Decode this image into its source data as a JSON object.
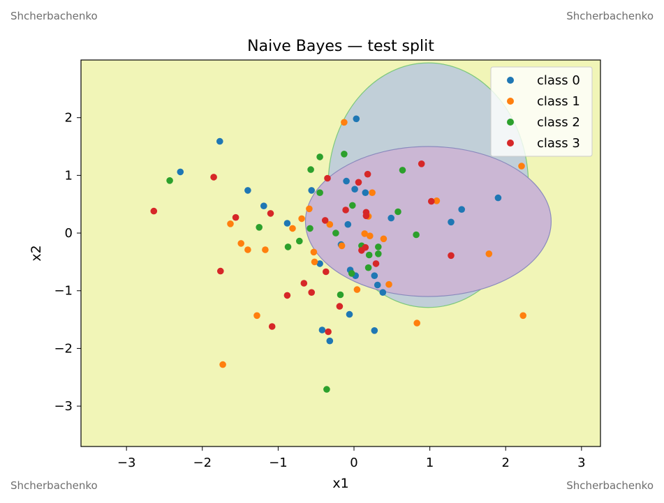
{
  "watermarks": {
    "top_left": "Shcherbachenko",
    "top_right": "Shcherbachenko",
    "bottom_left": "Shcherbachenko",
    "bottom_right": "Shcherbachenko"
  },
  "chart_data": {
    "type": "scatter",
    "title": "Naive Bayes — test split",
    "xlabel": "x1",
    "ylabel": "x2",
    "xlim": [
      -3.6,
      3.25
    ],
    "ylim": [
      -3.7,
      3.0
    ],
    "x_ticks": [
      -3,
      -2,
      -1,
      0,
      1,
      2,
      3
    ],
    "x_tick_labels": [
      "−3",
      "−2",
      "−1",
      "0",
      "1",
      "2",
      "3"
    ],
    "y_ticks": [
      -3,
      -2,
      -1,
      0,
      1,
      2
    ],
    "y_tick_labels": [
      "−3",
      "−2",
      "−1",
      "0",
      "1",
      "2"
    ],
    "grid": false,
    "legend_position": "top-right",
    "background_region_color": "#f1f5b7",
    "decision_regions": [
      {
        "shape": "ellipse",
        "cx": 0.98,
        "cy": 0.83,
        "rx": 1.32,
        "ry": 2.12,
        "fill": "#c1cfd8",
        "edge": "#7dc87d"
      },
      {
        "shape": "ellipse",
        "cx": 0.98,
        "cy": 0.2,
        "rx": 1.62,
        "ry": 1.3,
        "fill": "#cbb7d4",
        "edge": "#8a8abd"
      }
    ],
    "series": [
      {
        "name": "class 0",
        "color": "#1f77b4",
        "points": [
          [
            0.03,
            1.98
          ],
          [
            -1.77,
            1.59
          ],
          [
            -2.29,
            1.06
          ],
          [
            -1.4,
            0.74
          ],
          [
            -1.19,
            0.47
          ],
          [
            -0.56,
            0.74
          ],
          [
            -0.1,
            0.9
          ],
          [
            0.01,
            0.76
          ],
          [
            0.15,
            0.7
          ],
          [
            -0.88,
            0.17
          ],
          [
            -0.08,
            0.15
          ],
          [
            -0.45,
            -0.53
          ],
          [
            -0.17,
            -0.2
          ],
          [
            -0.05,
            -0.64
          ],
          [
            0.02,
            -0.74
          ],
          [
            0.27,
            -0.74
          ],
          [
            0.31,
            -0.9
          ],
          [
            0.38,
            -1.03
          ],
          [
            -0.06,
            -1.41
          ],
          [
            -0.42,
            -1.68
          ],
          [
            -0.32,
            -1.87
          ],
          [
            0.27,
            -1.69
          ],
          [
            0.49,
            0.26
          ],
          [
            1.28,
            0.19
          ],
          [
            1.42,
            0.41
          ],
          [
            1.9,
            0.61
          ]
        ]
      },
      {
        "name": "class 1",
        "color": "#ff7f0e",
        "points": [
          [
            -0.13,
            1.92
          ],
          [
            2.21,
            1.16
          ],
          [
            0.24,
            0.7
          ],
          [
            1.09,
            0.56
          ],
          [
            -0.59,
            0.42
          ],
          [
            -0.69,
            0.25
          ],
          [
            -0.81,
            0.08
          ],
          [
            -0.32,
            0.15
          ],
          [
            0.19,
            0.29
          ],
          [
            -1.63,
            0.16
          ],
          [
            0.14,
            -0.01
          ],
          [
            0.21,
            -0.05
          ],
          [
            0.39,
            -0.1
          ],
          [
            -1.49,
            -0.18
          ],
          [
            -1.4,
            -0.29
          ],
          [
            -1.17,
            -0.29
          ],
          [
            -0.16,
            -0.22
          ],
          [
            -0.53,
            -0.33
          ],
          [
            -0.52,
            -0.5
          ],
          [
            0.46,
            -0.89
          ],
          [
            0.04,
            -0.98
          ],
          [
            1.78,
            -0.36
          ],
          [
            -1.28,
            -1.43
          ],
          [
            0.83,
            -1.56
          ],
          [
            2.23,
            -1.43
          ],
          [
            -1.73,
            -2.28
          ]
        ]
      },
      {
        "name": "class 2",
        "color": "#2ca02c",
        "points": [
          [
            -0.45,
            1.32
          ],
          [
            -0.13,
            1.37
          ],
          [
            0.64,
            1.09
          ],
          [
            -2.43,
            0.91
          ],
          [
            -0.57,
            1.1
          ],
          [
            -0.45,
            0.7
          ],
          [
            -0.02,
            0.48
          ],
          [
            0.58,
            0.37
          ],
          [
            -1.25,
            0.1
          ],
          [
            -0.58,
            0.08
          ],
          [
            -0.24,
            0.0
          ],
          [
            0.82,
            -0.03
          ],
          [
            -0.72,
            -0.14
          ],
          [
            -0.87,
            -0.24
          ],
          [
            0.1,
            -0.22
          ],
          [
            0.32,
            -0.24
          ],
          [
            0.2,
            -0.38
          ],
          [
            0.32,
            -0.36
          ],
          [
            0.19,
            -0.6
          ],
          [
            -0.03,
            -0.7
          ],
          [
            -0.18,
            -1.07
          ],
          [
            -0.36,
            -2.71
          ]
        ]
      },
      {
        "name": "class 3",
        "color": "#d62728",
        "points": [
          [
            0.89,
            1.2
          ],
          [
            -1.85,
            0.97
          ],
          [
            -0.35,
            0.95
          ],
          [
            0.18,
            1.02
          ],
          [
            0.06,
            0.88
          ],
          [
            -2.64,
            0.38
          ],
          [
            -1.56,
            0.27
          ],
          [
            -1.1,
            0.34
          ],
          [
            -0.38,
            0.22
          ],
          [
            -0.11,
            0.4
          ],
          [
            0.16,
            0.36
          ],
          [
            0.16,
            0.3
          ],
          [
            1.02,
            0.55
          ],
          [
            0.1,
            -0.3
          ],
          [
            0.15,
            -0.25
          ],
          [
            0.29,
            -0.53
          ],
          [
            -1.76,
            -0.66
          ],
          [
            -0.37,
            -0.67
          ],
          [
            -0.66,
            -0.87
          ],
          [
            -0.56,
            -1.03
          ],
          [
            -0.88,
            -1.08
          ],
          [
            -0.19,
            -1.27
          ],
          [
            -1.08,
            -1.62
          ],
          [
            -0.34,
            -1.71
          ],
          [
            1.28,
            -0.39
          ]
        ]
      }
    ]
  }
}
